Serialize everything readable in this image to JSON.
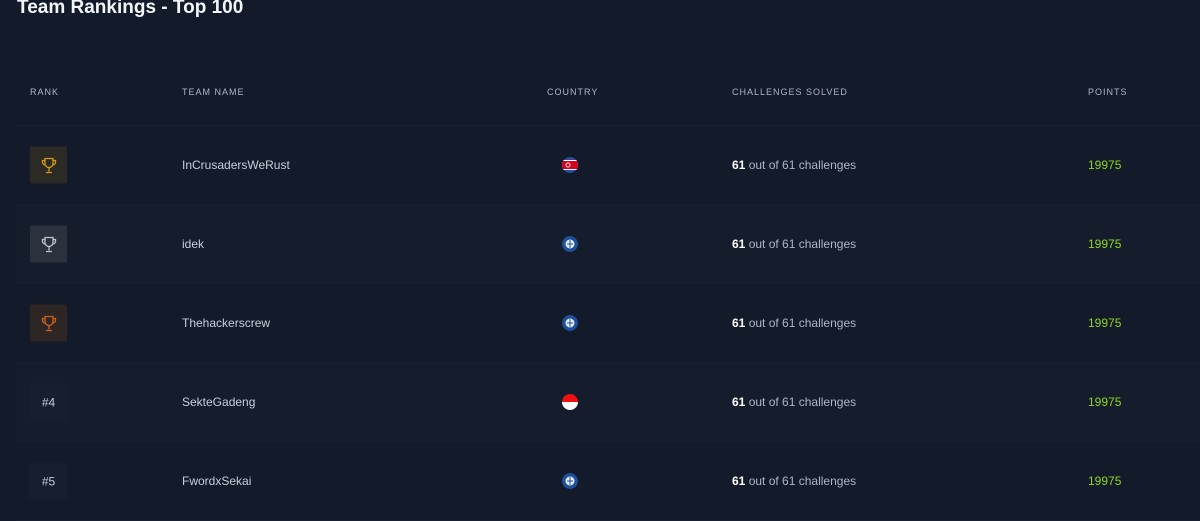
{
  "title": "Team Rankings - Top 100",
  "columns": {
    "rank": "RANK",
    "team": "TEAM NAME",
    "country": "COUNTRY",
    "challenges": "CHALLENGES SOLVED",
    "points": "POINTS"
  },
  "colors": {
    "gold": "#d59a12",
    "silver": "#c0c4cc",
    "bronze": "#c8641e",
    "points": "#8fd620"
  },
  "rows": [
    {
      "rank": "1",
      "trophy": "gold",
      "team": "InCrusadersWeRust",
      "country_icon": "north-korea-flag",
      "solved": "61",
      "solved_text": "out of 61 challenges",
      "points": "19975"
    },
    {
      "rank": "2",
      "trophy": "silver",
      "team": "idek",
      "country_icon": "globe-flag",
      "solved": "61",
      "solved_text": "out of 61 challenges",
      "points": "19975"
    },
    {
      "rank": "3",
      "trophy": "bronze",
      "team": "Thehackerscrew",
      "country_icon": "globe-flag",
      "solved": "61",
      "solved_text": "out of 61 challenges",
      "points": "19975"
    },
    {
      "rank": "#4",
      "team": "SekteGadeng",
      "country_icon": "indonesia-flag",
      "solved": "61",
      "solved_text": "out of 61 challenges",
      "points": "19975"
    },
    {
      "rank": "#5",
      "team": "FwordxSekai",
      "country_icon": "globe-flag",
      "solved": "61",
      "solved_text": "out of 61 challenges",
      "points": "19975"
    }
  ]
}
